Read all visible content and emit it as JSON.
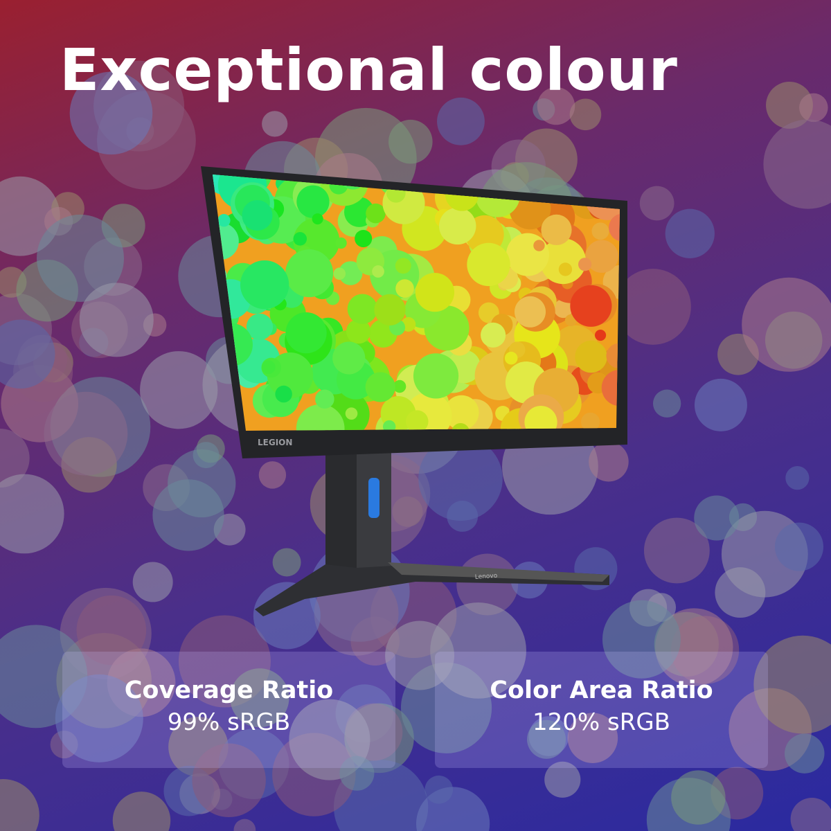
{
  "headline": "Exceptional colour",
  "product": {
    "bezel_logo": "LEGION",
    "stand_logo": "Lenovo",
    "accent_color": "#2a7ae0"
  },
  "specs": [
    {
      "label": "Coverage Ratio",
      "value": "99% sRGB"
    },
    {
      "label": "Color Area Ratio",
      "value": "120% sRGB"
    }
  ]
}
